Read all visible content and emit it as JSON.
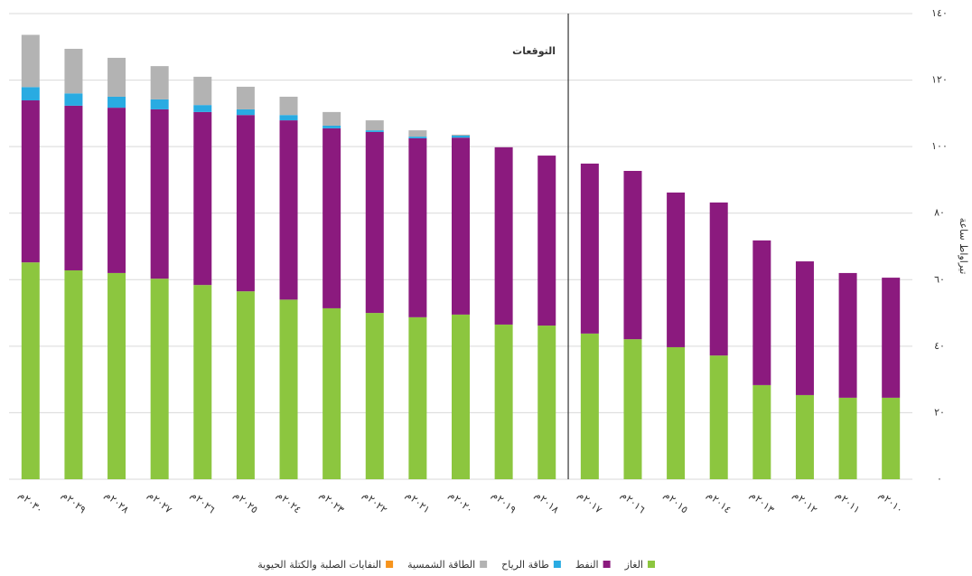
{
  "chart_data": {
    "type": "stacked_bar",
    "annotation": "التوقعات",
    "y_label": "تيراواط ساعة",
    "categories": [
      "٢٠٣٠م",
      "٢٠٢٩م",
      "٢٠٢٨م",
      "٢٠٢٧م",
      "٢٠٢٦م",
      "٢٠٢٥م",
      "٢٠٢٤م",
      "٢٠٢٣م",
      "٢٠٢٢م",
      "٢٠٢١م",
      "٢٠٢٠م",
      "٢٠١٩م",
      "٢٠١٨م",
      "٢٠١٧م",
      "٢٠١٦م",
      "٢٠١٥م",
      "٢٠١٤م",
      "٢٠١٣م",
      "٢٠١٢م",
      "٢٠١١م",
      "٢٠١٠م"
    ],
    "series": [
      {
        "name": "الغاز",
        "color": "#8cc63f",
        "values": [
          65.2,
          62.8,
          62,
          60.3,
          58.4,
          56.5,
          54,
          51.4,
          50,
          48.7,
          49.5,
          46.5,
          46.2,
          43.8,
          42.1,
          39.7,
          37.2,
          28.3,
          25.3,
          24.5,
          24.5
        ]
      },
      {
        "name": "النفط",
        "color": "#8b1a7e",
        "values": [
          48.7,
          49.5,
          49.7,
          50.9,
          52,
          53,
          53.9,
          54.1,
          54.4,
          53.8,
          53.2,
          53.3,
          51.1,
          51.1,
          50.6,
          46.5,
          46,
          43.5,
          40.2,
          37.5,
          36.1
        ]
      },
      {
        "name": "طاقة الرياح",
        "color": "#29abe2",
        "values": [
          4,
          3.7,
          3.3,
          3,
          2.1,
          1.7,
          1.6,
          0.8,
          0.5,
          0.5,
          0.6,
          null,
          null,
          null,
          null,
          null,
          null,
          null,
          null,
          null,
          null
        ]
      },
      {
        "name": "الطاقة الشمسية",
        "color": "#b3b3b3",
        "values": [
          15.7,
          13.4,
          11.7,
          10,
          8.5,
          6.8,
          5.5,
          4.1,
          3,
          1.9,
          0.3,
          null,
          null,
          null,
          null,
          null,
          null,
          null,
          null,
          null,
          null
        ]
      },
      {
        "name": "النفايات الصلبة والكتلة الحيوية",
        "color": "#f7941d",
        "values": [
          null,
          null,
          null,
          null,
          null,
          null,
          null,
          null,
          null,
          null,
          null,
          null,
          null,
          null,
          null,
          null,
          null,
          null,
          null,
          null,
          null
        ]
      }
    ],
    "ylim": [
      0,
      140
    ],
    "yticks": [
      {
        "value": 0,
        "label": "٠"
      },
      {
        "value": 20,
        "label": "٢٠"
      },
      {
        "value": 40,
        "label": "٤٠"
      },
      {
        "value": 60,
        "label": "٦٠"
      },
      {
        "value": 80,
        "label": "٨٠"
      },
      {
        "value": 100,
        "label": "١٠٠"
      },
      {
        "value": 120,
        "label": "١٢٠"
      },
      {
        "value": 140,
        "label": "١٤٠"
      }
    ],
    "grid": true
  }
}
